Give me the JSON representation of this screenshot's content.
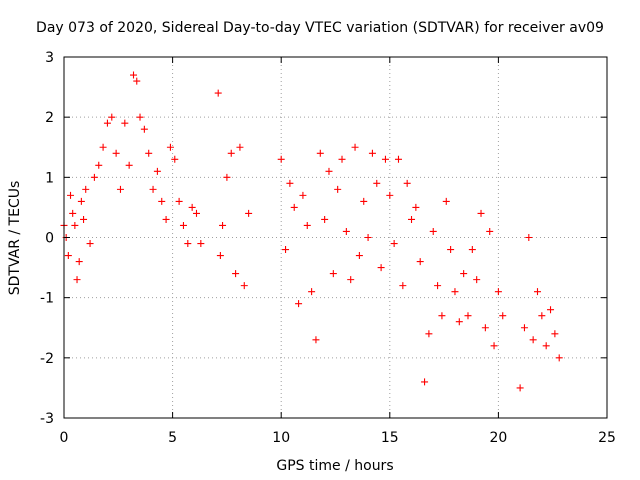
{
  "chart_data": {
    "type": "scatter",
    "title": "Day 073 of 2020, Sidereal Day-to-day VTEC variation (SDTVAR) for receiver av09",
    "xlabel": "GPS time / hours",
    "ylabel": "SDTVAR / TECUs",
    "xlim": [
      0,
      25
    ],
    "ylim": [
      -3,
      3
    ],
    "x_ticks": [
      0,
      5,
      10,
      15,
      20,
      25
    ],
    "y_ticks": [
      -3,
      -2,
      -1,
      0,
      1,
      2,
      3
    ],
    "x_tick_labels": [
      "0",
      "5",
      "10",
      "15",
      "20",
      "25"
    ],
    "y_tick_labels": [
      "-3",
      "-2",
      "-1",
      "0",
      "1",
      "2",
      "3"
    ],
    "grid": true,
    "marker": "+",
    "series": [
      {
        "name": "SDTVAR",
        "color": "#ff0000",
        "x": [
          0.0,
          0.1,
          0.2,
          0.3,
          0.4,
          0.5,
          0.6,
          0.7,
          0.8,
          0.9,
          1.0,
          1.2,
          1.4,
          1.6,
          1.8,
          2.0,
          2.2,
          2.4,
          2.6,
          2.8,
          3.0,
          3.2,
          3.35,
          3.5,
          3.7,
          3.9,
          4.1,
          4.3,
          4.5,
          4.7,
          4.9,
          5.1,
          5.3,
          5.5,
          5.7,
          5.9,
          6.1,
          6.3,
          7.1,
          7.2,
          7.3,
          7.5,
          7.7,
          7.9,
          8.1,
          8.3,
          8.5,
          10.0,
          10.2,
          10.4,
          10.6,
          10.8,
          11.0,
          11.2,
          11.4,
          11.6,
          11.8,
          12.0,
          12.2,
          12.4,
          12.6,
          12.8,
          13.0,
          13.2,
          13.4,
          13.6,
          13.8,
          14.0,
          14.2,
          14.4,
          14.6,
          14.8,
          15.0,
          15.2,
          15.4,
          15.6,
          15.8,
          16.0,
          16.2,
          16.4,
          16.6,
          16.8,
          17.0,
          17.2,
          17.4,
          17.6,
          17.8,
          18.0,
          18.2,
          18.4,
          18.6,
          18.8,
          19.0,
          19.2,
          19.4,
          19.6,
          19.8,
          20.0,
          20.2,
          21.0,
          21.2,
          21.4,
          21.6,
          21.8,
          22.0,
          22.2,
          22.4,
          22.6,
          22.8
        ],
        "values": [
          0.2,
          0.0,
          -0.3,
          0.7,
          0.4,
          0.2,
          -0.7,
          -0.4,
          0.6,
          0.3,
          0.8,
          -0.1,
          1.0,
          1.2,
          1.5,
          1.9,
          2.0,
          1.4,
          0.8,
          1.9,
          1.2,
          2.7,
          2.6,
          2.0,
          1.8,
          1.4,
          0.8,
          1.1,
          0.6,
          0.3,
          1.5,
          1.3,
          0.6,
          0.2,
          -0.1,
          0.5,
          0.4,
          -0.1,
          2.4,
          -0.3,
          0.2,
          1.0,
          1.4,
          -0.6,
          1.5,
          -0.8,
          0.4,
          1.3,
          -0.2,
          0.9,
          0.5,
          -1.1,
          0.7,
          0.2,
          -0.9,
          -1.7,
          1.4,
          0.3,
          1.1,
          -0.6,
          0.8,
          1.3,
          0.1,
          -0.7,
          1.5,
          -0.3,
          0.6,
          0.0,
          1.4,
          0.9,
          -0.5,
          1.3,
          0.7,
          -0.1,
          1.3,
          -0.8,
          0.9,
          0.3,
          0.5,
          -0.4,
          -2.4,
          -1.6,
          0.1,
          -0.8,
          -1.3,
          0.6,
          -0.2,
          -0.9,
          -1.4,
          -0.6,
          -1.3,
          -0.2,
          -0.7,
          0.4,
          -1.5,
          0.1,
          -1.8,
          -0.9,
          -1.3,
          -2.5,
          -1.5,
          0.0,
          -1.7,
          -0.9,
          -1.3,
          -1.8,
          -1.2,
          -1.6,
          -2.0
        ]
      }
    ]
  }
}
